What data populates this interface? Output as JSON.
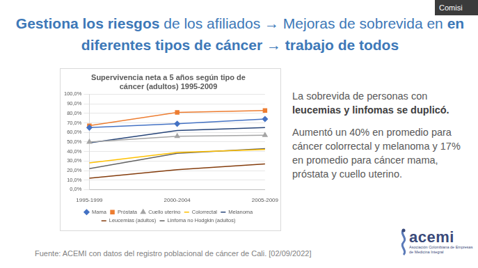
{
  "slide": {
    "corner_label": "Comisi",
    "heading": [
      {
        "text": "Gestiona los riesgos",
        "bold": true
      },
      {
        "text": " de los afiliados → Mejoras de sobrevida en ",
        "bold": false
      },
      {
        "text": "en diferentes tipos de cáncer → trabajo de todos",
        "bold": true
      }
    ],
    "paragraphs": [
      [
        {
          "text": "La sobrevida de personas con ",
          "bold": false
        },
        {
          "text": "leucemias y linfomas se duplicó.",
          "bold": true
        }
      ],
      [
        {
          "text": "Aumentó un 40% en promedio para cáncer colorrectal y melanoma y 17% en promedio para cáncer mama, próstata y cuello uterino.",
          "bold": false
        }
      ]
    ],
    "source": "Fuente: ACEMI con datos del registro poblacional de cáncer de Cali. [02/09/2022]",
    "logo": {
      "name": "acemi",
      "subtitle": "Asociación Colombiana de Empresas de Medicina Integral"
    }
  },
  "chart_data": {
    "type": "line",
    "title": [
      "Supervivencia neta a 5 años según tipo de",
      "cáncer (adultos) 1995-2009"
    ],
    "categories": [
      "1995-1999",
      "2000-2004",
      "2005-2009"
    ],
    "series": [
      {
        "name": "Mama",
        "color": "#4472c4",
        "marker": "diamond",
        "values": [
          65,
          69,
          74
        ]
      },
      {
        "name": "Próstata",
        "color": "#ed7d31",
        "marker": "square",
        "values": [
          67,
          81,
          83
        ]
      },
      {
        "name": "Cuello uterino",
        "color": "#a5a5a5",
        "marker": "triangle",
        "values": [
          50,
          56,
          57
        ]
      },
      {
        "name": "Colorrectal",
        "color": "#ffc000",
        "marker": "none",
        "values": [
          28,
          39,
          42
        ]
      },
      {
        "name": "Melanoma",
        "color": "#264478",
        "marker": "none",
        "values": [
          49,
          62,
          65
        ]
      },
      {
        "name": "Leucemias (adultos)",
        "color": "#843c0c",
        "marker": "none",
        "values": [
          12,
          21,
          27
        ]
      },
      {
        "name": "Linfoma no Hodgkin (adultos)",
        "color": "#636363",
        "marker": "none",
        "values": [
          22,
          38,
          43
        ]
      }
    ],
    "ylim": [
      0,
      100
    ],
    "yticks": [
      {
        "value": 0,
        "label": "0,0%"
      },
      {
        "value": 10,
        "label": "10,0%"
      },
      {
        "value": 20,
        "label": "20,0%"
      },
      {
        "value": 30,
        "label": "30,0%"
      },
      {
        "value": 40,
        "label": "40,0%"
      },
      {
        "value": 50,
        "label": "50,0%"
      },
      {
        "value": 60,
        "label": "60,0%"
      },
      {
        "value": 70,
        "label": "70,0%"
      },
      {
        "value": 80,
        "label": "80,0%"
      },
      {
        "value": 90,
        "label": "90,0%"
      },
      {
        "value": 100,
        "label": "100,0%"
      }
    ],
    "grid": true,
    "legend": "bottom"
  }
}
